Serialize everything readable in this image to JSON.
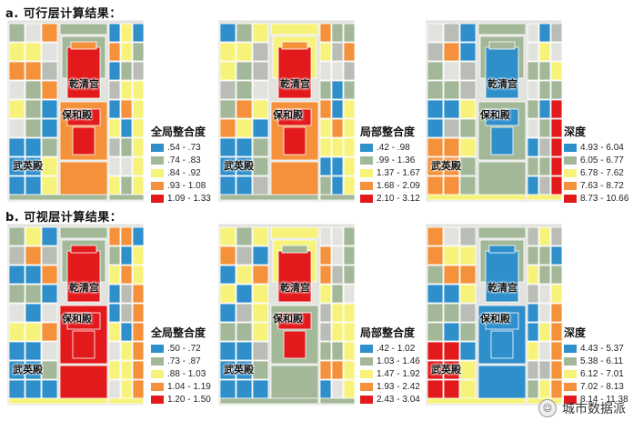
{
  "sections": [
    {
      "title": "a. 可行层计算结果："
    },
    {
      "title": "b. 可视层计算结果："
    }
  ],
  "palette": {
    "blue": "#2f8fcb",
    "sage": "#a3b898",
    "yellow": "#f7f37a",
    "orange": "#f4913a",
    "red": "#e31a1c",
    "gray": "#b9bdb6",
    "light": "#e2e2de"
  },
  "place_labels": {
    "qianqing": "乾清宫",
    "baohe": "保和殿",
    "wuying": "武英殿"
  },
  "panels": [
    {
      "id": "a-global",
      "legend": {
        "title": "全局整合度",
        "items": [
          ".54 - .73",
          ".74 - .83",
          ".84 - .92",
          ".93 - 1.08",
          "1.09 - 1.33"
        ]
      },
      "colors": {
        "palace": "#e31a1c",
        "court": "#f4913a",
        "core": "#e31a1c",
        "ring": "#a3b898",
        "west": "#2f8fcb",
        "east": "#f7f37a",
        "bottom": "#a3b898"
      }
    },
    {
      "id": "a-local",
      "legend": {
        "title": "局部整合度",
        "items": [
          ".42 - .98",
          ".99 - 1.36",
          "1.37 - 1.67",
          "1.68 - 2.09",
          "2.10 - 3.12"
        ]
      },
      "colors": {
        "palace": "#e31a1c",
        "court": "#f4913a",
        "core": "#e31a1c",
        "ring": "#f7f37a",
        "west": "#2f8fcb",
        "east": "#f7f37a",
        "bottom": "#a3b898"
      }
    },
    {
      "id": "a-depth",
      "legend": {
        "title": "深度",
        "items": [
          "4.93 - 6.04",
          "6.05 - 6.77",
          "6.78 - 7.62",
          "7.63 - 8.72",
          "8.73 - 10.66"
        ]
      },
      "colors": {
        "palace": "#2f8fcb",
        "court": "#a3b898",
        "core": "#2f8fcb",
        "ring": "#a3b898",
        "west": "#f4913a",
        "east": "#e31a1c",
        "bottom": "#f7f37a"
      }
    },
    {
      "id": "b-global",
      "legend": {
        "title": "全局整合度",
        "items": [
          ".50 - .72",
          ".73 - .87",
          ".88 - 1.03",
          "1.04 - 1.19",
          "1.20 - 1.50"
        ]
      },
      "colors": {
        "palace": "#e31a1c",
        "court": "#e31a1c",
        "core": "#e31a1c",
        "ring": "#a3b898",
        "west": "#2f8fcb",
        "east": "#f4913a",
        "bottom": "#f7f37a"
      }
    },
    {
      "id": "b-local",
      "legend": {
        "title": "局部整合度",
        "items": [
          ".42 - 1.02",
          "1.03 - 1.46",
          "1.47 - 1.92",
          "1.93 - 2.42",
          "2.43 - 3.04"
        ]
      },
      "colors": {
        "palace": "#e31a1c",
        "court": "#a3b898",
        "core": "#e31a1c",
        "ring": "#f7f37a",
        "west": "#2f8fcb",
        "east": "#f7f37a",
        "bottom": "#a3b898"
      }
    },
    {
      "id": "b-depth",
      "legend": {
        "title": "深度",
        "items": [
          "4.43 - 5.37",
          "5.38 - 6.11",
          "6.12 - 7.01",
          "7.02 - 8.13",
          "8.14 - 11.38"
        ]
      },
      "colors": {
        "palace": "#2f8fcb",
        "court": "#2f8fcb",
        "core": "#2f8fcb",
        "ring": "#a3b898",
        "west": "#e31a1c",
        "east": "#f4913a",
        "bottom": "#f7f37a"
      }
    }
  ],
  "legend_colors": [
    "#2f8fcb",
    "#a3b898",
    "#f7f37a",
    "#f4913a",
    "#e31a1c"
  ],
  "watermark": {
    "text": "城市数据派"
  }
}
